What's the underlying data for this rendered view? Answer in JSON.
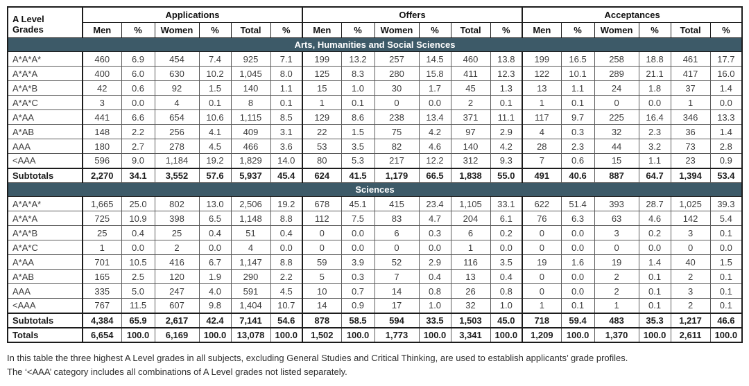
{
  "colors": {
    "section_header_bg": "#3D5A68",
    "section_header_text": "#FFFFFF",
    "heavy_border": "#1C1C1C",
    "light_border": "#5A5A5A",
    "body_text": "#3C3C3C"
  },
  "table": {
    "row_header_label": "A Level Grades",
    "groups": [
      "Applications",
      "Offers",
      "Acceptances"
    ],
    "sub_columns": [
      "Men",
      "%",
      "Women",
      "%",
      "Total",
      "%"
    ],
    "sections": [
      {
        "title": "Arts, Humanities and Social Sciences",
        "rows": [
          {
            "grade": "A*A*A*",
            "values": [
              "460",
              "6.9",
              "454",
              "7.4",
              "925",
              "7.1",
              "199",
              "13.2",
              "257",
              "14.5",
              "460",
              "13.8",
              "199",
              "16.5",
              "258",
              "18.8",
              "461",
              "17.7"
            ]
          },
          {
            "grade": "A*A*A",
            "values": [
              "400",
              "6.0",
              "630",
              "10.2",
              "1,045",
              "8.0",
              "125",
              "8.3",
              "280",
              "15.8",
              "411",
              "12.3",
              "122",
              "10.1",
              "289",
              "21.1",
              "417",
              "16.0"
            ]
          },
          {
            "grade": "A*A*B",
            "values": [
              "42",
              "0.6",
              "92",
              "1.5",
              "140",
              "1.1",
              "15",
              "1.0",
              "30",
              "1.7",
              "45",
              "1.3",
              "13",
              "1.1",
              "24",
              "1.8",
              "37",
              "1.4"
            ]
          },
          {
            "grade": "A*A*C",
            "values": [
              "3",
              "0.0",
              "4",
              "0.1",
              "8",
              "0.1",
              "1",
              "0.1",
              "0",
              "0.0",
              "2",
              "0.1",
              "1",
              "0.1",
              "0",
              "0.0",
              "1",
              "0.0"
            ]
          },
          {
            "grade": "A*AA",
            "values": [
              "441",
              "6.6",
              "654",
              "10.6",
              "1,115",
              "8.5",
              "129",
              "8.6",
              "238",
              "13.4",
              "371",
              "11.1",
              "117",
              "9.7",
              "225",
              "16.4",
              "346",
              "13.3"
            ]
          },
          {
            "grade": "A*AB",
            "values": [
              "148",
              "2.2",
              "256",
              "4.1",
              "409",
              "3.1",
              "22",
              "1.5",
              "75",
              "4.2",
              "97",
              "2.9",
              "4",
              "0.3",
              "32",
              "2.3",
              "36",
              "1.4"
            ]
          },
          {
            "grade": "AAA",
            "values": [
              "180",
              "2.7",
              "278",
              "4.5",
              "466",
              "3.6",
              "53",
              "3.5",
              "82",
              "4.6",
              "140",
              "4.2",
              "28",
              "2.3",
              "44",
              "3.2",
              "73",
              "2.8"
            ]
          },
          {
            "grade": "<AAA",
            "values": [
              "596",
              "9.0",
              "1,184",
              "19.2",
              "1,829",
              "14.0",
              "80",
              "5.3",
              "217",
              "12.2",
              "312",
              "9.3",
              "7",
              "0.6",
              "15",
              "1.1",
              "23",
              "0.9"
            ]
          }
        ],
        "subtotals": {
          "label": "Subtotals",
          "values": [
            "2,270",
            "34.1",
            "3,552",
            "57.6",
            "5,937",
            "45.4",
            "624",
            "41.5",
            "1,179",
            "66.5",
            "1,838",
            "55.0",
            "491",
            "40.6",
            "887",
            "64.7",
            "1,394",
            "53.4"
          ]
        }
      },
      {
        "title": "Sciences",
        "rows": [
          {
            "grade": "A*A*A*",
            "values": [
              "1,665",
              "25.0",
              "802",
              "13.0",
              "2,506",
              "19.2",
              "678",
              "45.1",
              "415",
              "23.4",
              "1,105",
              "33.1",
              "622",
              "51.4",
              "393",
              "28.7",
              "1,025",
              "39.3"
            ]
          },
          {
            "grade": "A*A*A",
            "values": [
              "725",
              "10.9",
              "398",
              "6.5",
              "1,148",
              "8.8",
              "112",
              "7.5",
              "83",
              "4.7",
              "204",
              "6.1",
              "76",
              "6.3",
              "63",
              "4.6",
              "142",
              "5.4"
            ]
          },
          {
            "grade": "A*A*B",
            "values": [
              "25",
              "0.4",
              "25",
              "0.4",
              "51",
              "0.4",
              "0",
              "0.0",
              "6",
              "0.3",
              "6",
              "0.2",
              "0",
              "0.0",
              "3",
              "0.2",
              "3",
              "0.1"
            ]
          },
          {
            "grade": "A*A*C",
            "values": [
              "1",
              "0.0",
              "2",
              "0.0",
              "4",
              "0.0",
              "0",
              "0.0",
              "0",
              "0.0",
              "1",
              "0.0",
              "0",
              "0.0",
              "0",
              "0.0",
              "0",
              "0.0"
            ]
          },
          {
            "grade": "A*AA",
            "values": [
              "701",
              "10.5",
              "416",
              "6.7",
              "1,147",
              "8.8",
              "59",
              "3.9",
              "52",
              "2.9",
              "116",
              "3.5",
              "19",
              "1.6",
              "19",
              "1.4",
              "40",
              "1.5"
            ]
          },
          {
            "grade": "A*AB",
            "values": [
              "165",
              "2.5",
              "120",
              "1.9",
              "290",
              "2.2",
              "5",
              "0.3",
              "7",
              "0.4",
              "13",
              "0.4",
              "0",
              "0.0",
              "2",
              "0.1",
              "2",
              "0.1"
            ]
          },
          {
            "grade": "AAA",
            "values": [
              "335",
              "5.0",
              "247",
              "4.0",
              "591",
              "4.5",
              "10",
              "0.7",
              "14",
              "0.8",
              "26",
              "0.8",
              "0",
              "0.0",
              "2",
              "0.1",
              "3",
              "0.1"
            ]
          },
          {
            "grade": "<AAA",
            "values": [
              "767",
              "11.5",
              "607",
              "9.8",
              "1,404",
              "10.7",
              "14",
              "0.9",
              "17",
              "1.0",
              "32",
              "1.0",
              "1",
              "0.1",
              "1",
              "0.1",
              "2",
              "0.1"
            ]
          }
        ],
        "subtotals": {
          "label": "Subtotals",
          "values": [
            "4,384",
            "65.9",
            "2,617",
            "42.4",
            "7,141",
            "54.6",
            "878",
            "58.5",
            "594",
            "33.5",
            "1,503",
            "45.0",
            "718",
            "59.4",
            "483",
            "35.3",
            "1,217",
            "46.6"
          ]
        }
      }
    ],
    "totals": {
      "label": "Totals",
      "values": [
        "6,654",
        "100.0",
        "6,169",
        "100.0",
        "13,078",
        "100.0",
        "1,502",
        "100.0",
        "1,773",
        "100.0",
        "3,341",
        "100.0",
        "1,209",
        "100.0",
        "1,370",
        "100.0",
        "2,611",
        "100.0"
      ]
    }
  },
  "footnotes": [
    "In this table the three highest A Level grades in all subjects, excluding General Studies and Critical Thinking, are used to establish applicants’ grade profiles.",
    "The ‘<AAA’ category includes all combinations of A Level grades not listed separately."
  ]
}
